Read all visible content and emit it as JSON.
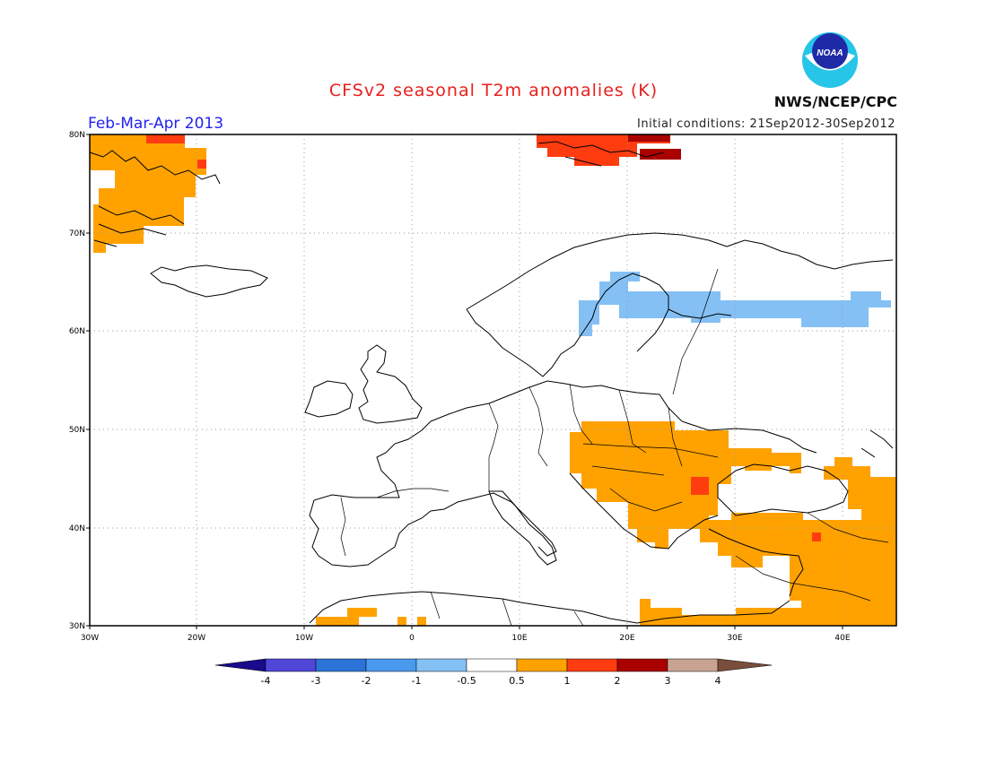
{
  "title": "CFSv2 seasonal T2m anomalies (K)",
  "season": "Feb-Mar-Apr 2013",
  "initial_conditions": "Initial conditions: 21Sep2012-30Sep2012",
  "agency": "NWS/NCEP/CPC",
  "logo_text": "NOAA",
  "lat_ticks": [
    "80N",
    "70N",
    "60N",
    "50N",
    "40N",
    "30N"
  ],
  "lon_ticks": [
    "30W",
    "20W",
    "10W",
    "0",
    "10E",
    "20E",
    "30E",
    "40E"
  ],
  "colorbar": {
    "labels": [
      "-4",
      "-3",
      "-2",
      "-1",
      "-0.5",
      "0.5",
      "1",
      "2",
      "3",
      "4"
    ],
    "colors": [
      "#1a0a8c",
      "#5046d8",
      "#2b73d9",
      "#4a99ee",
      "#84c0f4",
      "#ffffff",
      "#ffa200",
      "#ff3c10",
      "#aa0000",
      "#c8a392",
      "#7a4e3c"
    ]
  },
  "anomaly_regions": [
    {
      "name": "greenland",
      "category": "1"
    },
    {
      "name": "svalbard",
      "category": "2"
    },
    {
      "name": "svalbard-east",
      "category": "3"
    },
    {
      "name": "scandinavia-russia",
      "category": "-1"
    },
    {
      "name": "balkans-black-sea",
      "category": "1"
    },
    {
      "name": "turkey-middle-east",
      "category": "1"
    },
    {
      "name": "north-africa",
      "category": "1"
    }
  ]
}
